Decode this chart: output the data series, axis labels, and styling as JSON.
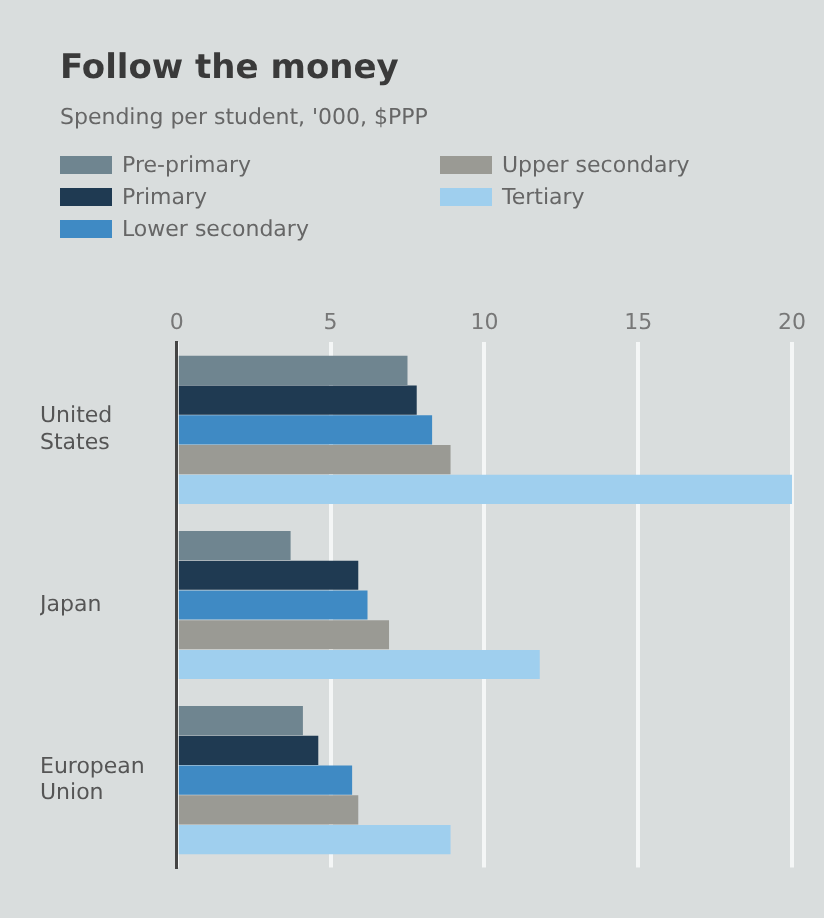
{
  "chart_data": {
    "type": "bar",
    "orientation": "horizontal",
    "title": "Follow the money",
    "subtitle": "Spending per student, '000, $PPP",
    "categories": [
      "United States",
      "Japan",
      "European Union"
    ],
    "series": [
      {
        "name": "Pre-primary",
        "color": "#6f8590",
        "values": [
          7.5,
          3.7,
          4.1
        ]
      },
      {
        "name": "Primary",
        "color": "#1f3a52",
        "values": [
          7.8,
          5.9,
          4.6
        ]
      },
      {
        "name": "Lower secondary",
        "color": "#3f8ac4",
        "values": [
          8.3,
          6.2,
          5.7
        ]
      },
      {
        "name": "Upper secondary",
        "color": "#9a9a94",
        "values": [
          8.9,
          6.9,
          5.9
        ]
      },
      {
        "name": "Tertiary",
        "color": "#9fcfee",
        "values": [
          20,
          11.8,
          8.9
        ]
      }
    ],
    "xlim": [
      0,
      20
    ],
    "xticks": [
      0,
      5,
      10,
      15,
      20
    ],
    "grid": "x",
    "legend": "top left"
  }
}
